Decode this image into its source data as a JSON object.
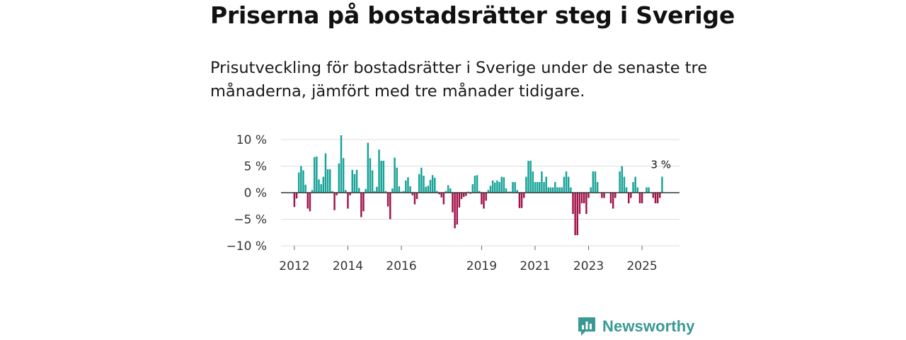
{
  "title": "Priserna på bostadsrätter steg i Sverige",
  "subtitle": "Prisutveckling för bostadsrätter i Sverige under de senaste tre månaderna, jämfört med tre månader tidigare.",
  "brand": {
    "name": "Newsworthy",
    "icon": "newsworthy-logo-icon"
  },
  "colors": {
    "positive": "#17a398",
    "negative": "#a3134a",
    "zero_line": "#333333",
    "grid": "#dddddd",
    "brand": "#3a9a93"
  },
  "chart_data": {
    "type": "bar",
    "title": "Priserna på bostadsrätter steg i Sverige",
    "xlabel": "",
    "ylabel": "",
    "unit": "%",
    "ylim": [
      -10,
      10
    ],
    "y_ticks": [
      10,
      5,
      0,
      -5,
      -10
    ],
    "y_tick_labels": [
      "10 %",
      "5 %",
      "0 %",
      "−5 %",
      "−10 %"
    ],
    "x_range": [
      2011.5,
      2026.4
    ],
    "x_ticks": [
      2012,
      2014,
      2016,
      2019,
      2021,
      2023,
      2025
    ],
    "x_tick_labels": [
      "2012",
      "2014",
      "2016",
      "2019",
      "2021",
      "2023",
      "2025"
    ],
    "start_month": "2012-01",
    "series": [
      {
        "name": "Prisutveckling",
        "values": [
          -2.7,
          -1.1,
          3.8,
          5.0,
          4.2,
          1.5,
          -3.0,
          -3.5,
          0.5,
          6.7,
          6.8,
          2.5,
          1.6,
          3.0,
          7.4,
          4.4,
          4.4,
          0.3,
          -3.3,
          -0.5,
          5.5,
          10.8,
          6.5,
          0.5,
          -3.0,
          -0.5,
          4.3,
          3.5,
          4.3,
          0.9,
          -4.6,
          -3.5,
          0.7,
          9.4,
          6.5,
          4.2,
          0.3,
          1.1,
          8.1,
          6.0,
          6.0,
          0.3,
          -2.6,
          -5.0,
          0.8,
          6.6,
          4.7,
          1.2,
          0.2,
          0.3,
          2.3,
          2.9,
          1.2,
          -0.5,
          -2.2,
          -1.2,
          3.5,
          4.7,
          3.2,
          1.1,
          1.3,
          2.4,
          3.3,
          2.8,
          0.3,
          -0.3,
          -0.9,
          -2.2,
          0.3,
          1.4,
          0.8,
          -3.7,
          -6.7,
          -6.0,
          -2.8,
          -1.2,
          -0.8,
          -0.6,
          0.2,
          -0.2,
          1.6,
          3.2,
          3.3,
          0.3,
          -2.2,
          -3.0,
          -1.5,
          0.5,
          1.3,
          2.3,
          1.9,
          2.3,
          2.0,
          3.0,
          2.9,
          0.8,
          0.2,
          0.2,
          2.0,
          2.0,
          0.5,
          -2.9,
          -2.9,
          -1.0,
          3.0,
          6.0,
          6.0,
          4.0,
          2.0,
          2.0,
          2.0,
          4.0,
          2.0,
          3.0,
          1.0,
          1.0,
          1.0,
          2.0,
          1.0,
          1.0,
          1.0,
          3.0,
          4.0,
          3.0,
          1.0,
          -4.0,
          -8.0,
          -8.0,
          -4.0,
          -2.0,
          -2.0,
          -4.0,
          -1.0,
          1.0,
          4.0,
          4.0,
          2.0,
          0.0,
          -1.0,
          -1.0,
          0.0,
          0.0,
          -2.0,
          -3.0,
          -1.0,
          0.0,
          4.0,
          5.0,
          3.0,
          1.0,
          -2.0,
          -1.0,
          2.0,
          3.0,
          1.0,
          -2.0,
          -2.0,
          0.0,
          1.0,
          1.0,
          0.0,
          -1.0,
          -2.0,
          -2.0,
          -1.0,
          3.0
        ]
      }
    ],
    "annotation": {
      "text": "3 %",
      "target": "last"
    }
  }
}
